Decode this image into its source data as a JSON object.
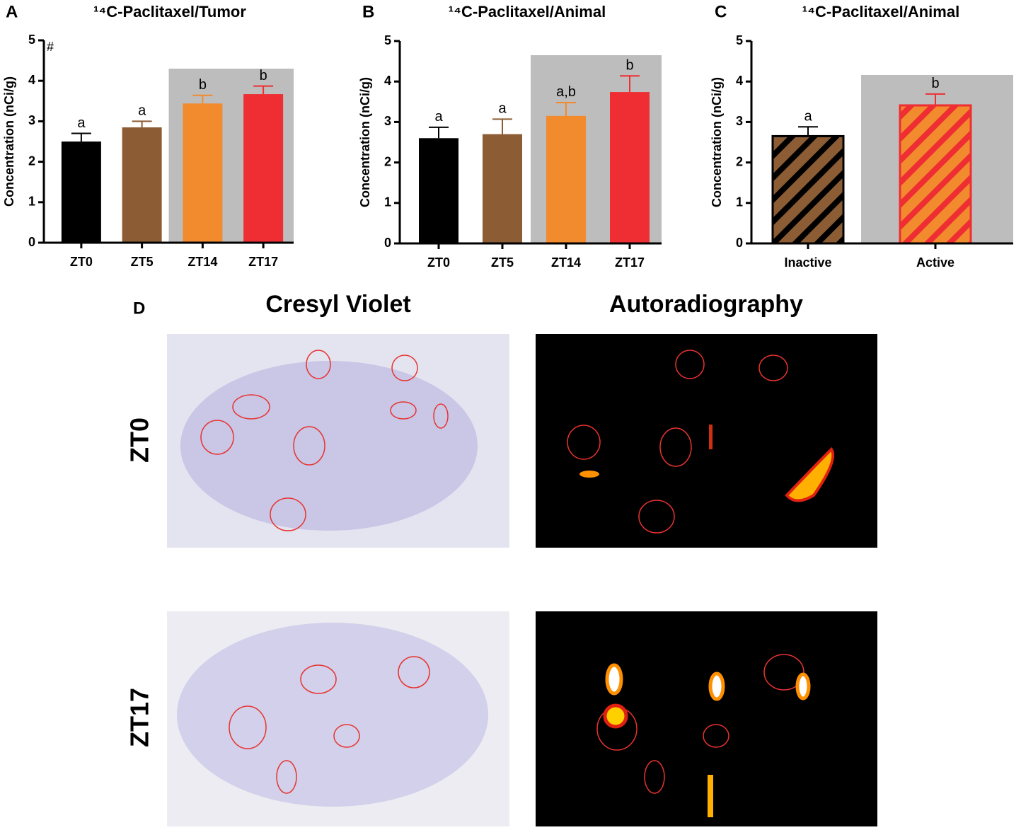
{
  "chart_data": [
    {
      "type": "bar",
      "panel": "A",
      "title": "¹⁴C-Paclitaxel/Tumor",
      "ylabel": "Concentration (nCi/g)",
      "categories": [
        "ZT0",
        "ZT5",
        "ZT14",
        "ZT17"
      ],
      "values": [
        2.5,
        2.85,
        3.44,
        3.67
      ],
      "errors": [
        0.2,
        0.15,
        0.2,
        0.2
      ],
      "colors": [
        "#000000",
        "#8c5d34",
        "#f28a2e",
        "#ee2e32"
      ],
      "annotations": [
        "a",
        "a",
        "b",
        "b"
      ],
      "note": "#",
      "shaded": [
        2,
        3
      ],
      "ylim": [
        0,
        5
      ],
      "yticks": [
        0,
        1,
        2,
        3,
        4,
        5
      ]
    },
    {
      "type": "bar",
      "panel": "B",
      "title": "¹⁴C-Paclitaxel/Animal",
      "ylabel": "Concentration (nCi/g)",
      "categories": [
        "ZT0",
        "ZT5",
        "ZT14",
        "ZT17"
      ],
      "values": [
        2.6,
        2.7,
        3.15,
        3.74
      ],
      "errors": [
        0.27,
        0.37,
        0.33,
        0.4
      ],
      "colors": [
        "#000000",
        "#8c5d34",
        "#f28a2e",
        "#ee2e32"
      ],
      "annotations": [
        "a",
        "a",
        "a,b",
        "b"
      ],
      "shaded": [
        2,
        3
      ],
      "ylim": [
        0,
        5
      ],
      "yticks": [
        0,
        1,
        2,
        3,
        4,
        5
      ]
    },
    {
      "type": "hatched-bar",
      "panel": "C",
      "title": "¹⁴C-Paclitaxel/Animal",
      "ylabel": "Concentration (nCi/g)",
      "categories": [
        "Inactive",
        "Active"
      ],
      "values": [
        2.65,
        3.41
      ],
      "errors": [
        0.23,
        0.28
      ],
      "colors": [
        "#8c5d34",
        "#f28a2e"
      ],
      "hatch_colors": [
        "#000000",
        "#ee2e32"
      ],
      "annotations": [
        "a",
        "b"
      ],
      "shaded": [
        1
      ],
      "ylim": [
        0,
        5
      ],
      "yticks": [
        0,
        1,
        2,
        3,
        4,
        5
      ]
    }
  ],
  "panel_d": {
    "label": "D",
    "columns": [
      "Cresyl Violet",
      "Autoradiography"
    ],
    "rows": [
      "ZT0",
      "ZT17"
    ]
  }
}
